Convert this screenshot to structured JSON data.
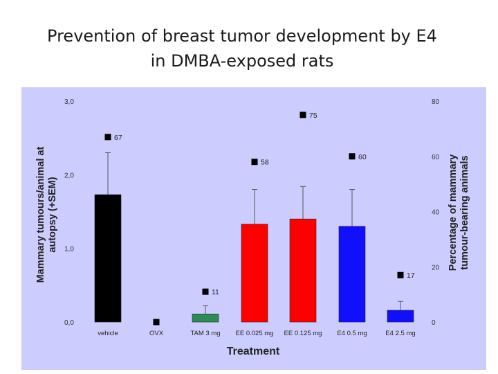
{
  "slide": {
    "title_line1": "Prevention of breast tumor development by E4",
    "title_line2": "in DMBA-exposed rats"
  },
  "colors": {
    "panel_bg": "#ccccff",
    "vehicle": "#000000",
    "ovx": "#000000",
    "tam": "#2e8b57",
    "ee": "#ff0000",
    "e4": "#1010ff"
  },
  "chart_data": {
    "type": "bar",
    "title": "",
    "xlabel": "Treatment",
    "ylabel": "Mammary tumours/animal at autopsy (+SEM)",
    "ylabel_lines": [
      "Mammary tumours/animal at",
      "autopsy (+SEM)"
    ],
    "y2label": "Percentage of mammary tumour-bearing animals",
    "y2label_lines": [
      "Percentage of mammary",
      "tumour-bearing animals"
    ],
    "categories": [
      "vehicle",
      "OVX",
      "TAM 3 mg",
      "EE 0.025 mg",
      "EE 0.125 mg",
      "E4 0.5 mg",
      "E4 2.5 mg"
    ],
    "ylim": [
      0,
      3
    ],
    "yticks": [
      "0,0",
      "1,0",
      "2,0",
      "3,0"
    ],
    "y2lim": [
      0,
      80
    ],
    "y2ticks": [
      "0",
      "20",
      "40",
      "60",
      "80"
    ],
    "series": [
      {
        "name": "Mammary tumours/animal at autopsy (+SEM)",
        "axis": "left",
        "type": "bar",
        "values": [
          1.73,
          0,
          0.11,
          1.33,
          1.4,
          1.3,
          0.16
        ],
        "sem": [
          0.57,
          0,
          0.11,
          0.47,
          0.44,
          0.5,
          0.12
        ]
      },
      {
        "name": "Percentage of mammary tumour-bearing animals",
        "axis": "right",
        "type": "scatter",
        "values": [
          67,
          0,
          11,
          58,
          75,
          60,
          17
        ],
        "labels": [
          "67",
          "",
          "11",
          "58",
          "75",
          "60",
          "17"
        ]
      }
    ]
  }
}
